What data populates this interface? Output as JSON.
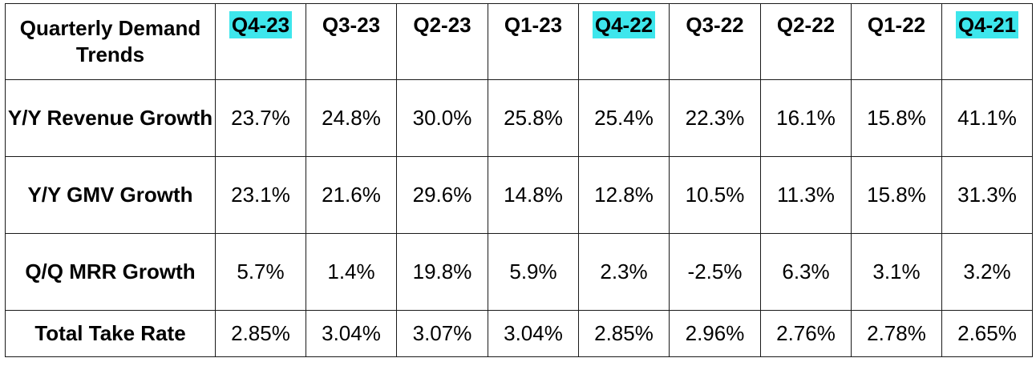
{
  "table": {
    "corner_label": "Quarterly Demand Trends",
    "highlight_color": "#3ee6ec",
    "columns": [
      {
        "label": "Q4-23",
        "highlighted": true
      },
      {
        "label": "Q3-23",
        "highlighted": false
      },
      {
        "label": "Q2-23",
        "highlighted": false
      },
      {
        "label": "Q1-23",
        "highlighted": false
      },
      {
        "label": "Q4-22",
        "highlighted": true
      },
      {
        "label": "Q3-22",
        "highlighted": false
      },
      {
        "label": "Q2-22",
        "highlighted": false
      },
      {
        "label": "Q1-22",
        "highlighted": false
      },
      {
        "label": "Q4-21",
        "highlighted": true
      }
    ],
    "rows": [
      {
        "label": "Y/Y Revenue Growth",
        "values": [
          "23.7%",
          "24.8%",
          "30.0%",
          "25.8%",
          "25.4%",
          "22.3%",
          "16.1%",
          "15.8%",
          "41.1%"
        ]
      },
      {
        "label": "Y/Y GMV Growth",
        "values": [
          "23.1%",
          "21.6%",
          "29.6%",
          "14.8%",
          "12.8%",
          "10.5%",
          "11.3%",
          "15.8%",
          "31.3%"
        ]
      },
      {
        "label": "Q/Q MRR Growth",
        "values": [
          "5.7%",
          "1.4%",
          "19.8%",
          "5.9%",
          "2.3%",
          "-2.5%",
          "6.3%",
          "3.1%",
          "3.2%"
        ]
      },
      {
        "label": "Total Take Rate",
        "values": [
          "2.85%",
          "3.04%",
          "3.07%",
          "3.04%",
          "2.85%",
          "2.96%",
          "2.76%",
          "2.78%",
          "2.65%"
        ]
      }
    ]
  }
}
